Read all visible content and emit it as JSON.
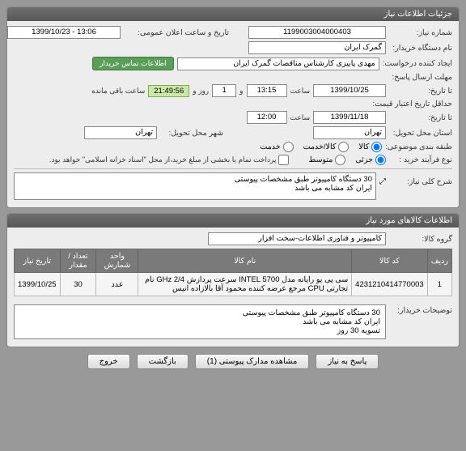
{
  "needInfo": {
    "panelTitle": "جزئیات اطلاعات نیاز",
    "labels": {
      "needNo": "شماره نیاز:",
      "orgName": "نام دستگاه خریدار:",
      "creator": "ایجاد کننده درخواست:",
      "answerDeadline": "مهلت ارسال پاسخ:",
      "untilDate": "تا تاریخ:",
      "minCreditDeadline": "حداقل تاریخ اعتبار قیمت:",
      "untilDate2": "تا تاریخ:",
      "deliveryProvince": "استان محل تحویل:",
      "deliveryCity": "شهر محل تحویل:",
      "packageType": "طبقه بندی موضوعی:",
      "purchaseType": "نوع فرآیند خرید :",
      "announceDate": "تاریخ و ساعت اعلان عمومی:",
      "timeLabel": "ساعت",
      "andLabel": "و",
      "dayLabel": "روز و",
      "remainLabel": "ساعت باقی مانده",
      "contactBadge": "اطلاعات تماس خریدار",
      "payNote": "پرداخت تمام یا بخشی از مبلغ خرید،از محل \"اسناد خزانه اسلامی\" خواهد بود.",
      "descLabel": "شرح کلی نیاز:",
      "expandIcon": "⤢"
    },
    "vals": {
      "needNo": "1199003004000403",
      "orgName": "گمرک ایران",
      "creator": "مهدی پاییزی کارشناس مناقصات گمرک ایران",
      "answerDate": "1399/10/25",
      "answerTime": "13:15",
      "answerDays": "1",
      "answerRemain": "21:49:56",
      "creditDate": "1399/11/18",
      "creditTime": "12:00",
      "province": "تهران",
      "city": "تهران",
      "announceDate": "1399/10/23 - 13:06",
      "desc": "30 دستگاه کامپیوتر طبق مشخصات پیوستی\nایران کد مشابه می باشد"
    },
    "packageOptions": {
      "kala": "کالا",
      "kalaService": "کالا/خدمت",
      "service": "خدمت"
    },
    "purchaseOptions": {
      "low": "جزئی",
      "mid": "متوسط"
    }
  },
  "goodsInfo": {
    "panelTitle": "اطلاعات کالاهای مورد نیاز",
    "labels": {
      "group": "گروه کالا:"
    },
    "vals": {
      "group": "کامپیوتر و فناوری اطلاعات-سخت افزار"
    },
    "table": {
      "headers": {
        "row": "ردیف",
        "code": "کد کالا",
        "name": "نام کالا",
        "unit": "واحد شمارش",
        "qty": "تعداد / مقدار",
        "needDate": "تاریخ نیاز"
      },
      "rows": [
        {
          "row": "1",
          "code": "4231210414770003",
          "name": "سی پی یو رایانه مدل INTEL 5700 سرعت پردازش GHz 2/4 نام تجارتی CPU مرجع عرضه کننده محمود آقا بالازاده انیس",
          "unit": "عدد",
          "qty": "30",
          "needDate": "1399/10/25"
        }
      ]
    },
    "buyerNote": {
      "label": "توضیحات خریدار:",
      "text": "30 دستگاه کامپیوتر طبق مشخصات پیوستی\nایران کد مشابه می باشد\nتسویه 30 روز"
    }
  },
  "footer": {
    "reply": "پاسخ به نیاز",
    "viewAttach": "مشاهده مدارک پیوستی (1)",
    "back": "بازگشت",
    "exit": "خروج"
  }
}
